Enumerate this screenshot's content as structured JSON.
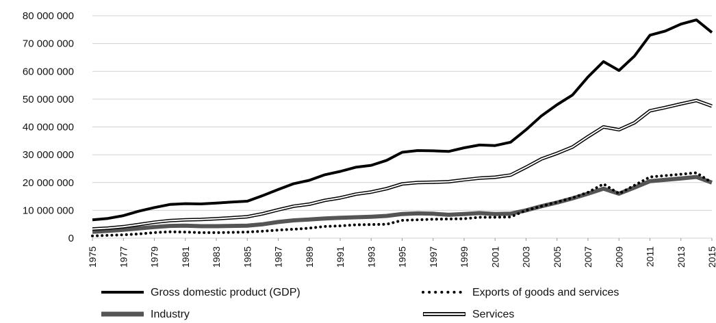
{
  "chart_data": {
    "type": "line",
    "ylim": [
      0,
      80000000
    ],
    "grid": true,
    "legend_position": "bottom",
    "y_ticks": [
      "0",
      "10 000 000",
      "20 000 000",
      "30 000 000",
      "40 000 000",
      "50 000 000",
      "60 000 000",
      "70 000 000",
      "80 000 000"
    ],
    "x_ticks": [
      "1975",
      "1977",
      "1979",
      "1981",
      "1983",
      "1985",
      "1987",
      "1989",
      "1991",
      "1993",
      "1995",
      "1997",
      "1999",
      "2001",
      "2003",
      "2005",
      "2007",
      "2009",
      "2011",
      "2013",
      "2015"
    ],
    "x": [
      1975,
      1976,
      1977,
      1978,
      1979,
      1980,
      1981,
      1982,
      1983,
      1984,
      1985,
      1986,
      1987,
      1988,
      1989,
      1990,
      1991,
      1992,
      1993,
      1994,
      1995,
      1996,
      1997,
      1998,
      1999,
      2000,
      2001,
      2002,
      2003,
      2004,
      2005,
      2006,
      2007,
      2008,
      2009,
      2010,
      2011,
      2012,
      2013,
      2014,
      2015
    ],
    "series": [
      {
        "name": "Gross domestic product (GDP)",
        "style": "solid-thick",
        "color": "#000000",
        "values": [
          6600000,
          7100000,
          8100000,
          9700000,
          11000000,
          12100000,
          12400000,
          12300000,
          12600000,
          13000000,
          13300000,
          15300000,
          17500000,
          19600000,
          20800000,
          22800000,
          24000000,
          25500000,
          26200000,
          28000000,
          30900000,
          31500000,
          31400000,
          31200000,
          32500000,
          33500000,
          33300000,
          34500000,
          39000000,
          44000000,
          48000000,
          51500000,
          58000000,
          63500000,
          60300000,
          65500000,
          73000000,
          74500000,
          77000000,
          78500000,
          74000000
        ]
      },
      {
        "name": "Exports of goods and services",
        "style": "dotted",
        "color": "#000000",
        "values": [
          800000,
          1000000,
          1200000,
          1500000,
          2000000,
          2300000,
          2200000,
          2000000,
          2000000,
          2100000,
          2200000,
          2500000,
          2900000,
          3200000,
          3600000,
          4200000,
          4400000,
          4800000,
          4900000,
          5000000,
          6400000,
          6600000,
          6800000,
          6900000,
          7000000,
          7500000,
          7500000,
          7600000,
          10000000,
          11500000,
          13000000,
          14500000,
          16500000,
          19500000,
          16000000,
          19000000,
          22000000,
          22500000,
          23000000,
          23500000,
          20000000
        ]
      },
      {
        "name": "Industry",
        "style": "solid-heavy",
        "color": "#555555",
        "values": [
          2300000,
          2600000,
          3000000,
          3500000,
          4000000,
          4400000,
          4500000,
          4300000,
          4300000,
          4400000,
          4500000,
          5000000,
          5800000,
          6400000,
          6700000,
          7100000,
          7300000,
          7500000,
          7700000,
          8000000,
          8700000,
          8900000,
          8800000,
          8400000,
          8700000,
          9000000,
          8700000,
          8800000,
          10000000,
          11500000,
          12800000,
          14300000,
          16000000,
          17800000,
          16000000,
          18200000,
          20500000,
          21000000,
          21500000,
          22000000,
          20000000
        ]
      },
      {
        "name": "Services",
        "style": "double",
        "color": "#000000",
        "values": [
          3300000,
          3600000,
          4100000,
          4900000,
          5700000,
          6300000,
          6600000,
          6700000,
          7000000,
          7300000,
          7700000,
          8800000,
          10200000,
          11500000,
          12200000,
          13600000,
          14500000,
          15800000,
          16600000,
          17800000,
          19500000,
          20000000,
          20100000,
          20300000,
          21000000,
          21600000,
          21900000,
          22700000,
          25500000,
          28500000,
          30500000,
          32800000,
          36500000,
          40000000,
          39000000,
          41500000,
          45800000,
          47000000,
          48300000,
          49500000,
          47500000
        ]
      }
    ]
  }
}
